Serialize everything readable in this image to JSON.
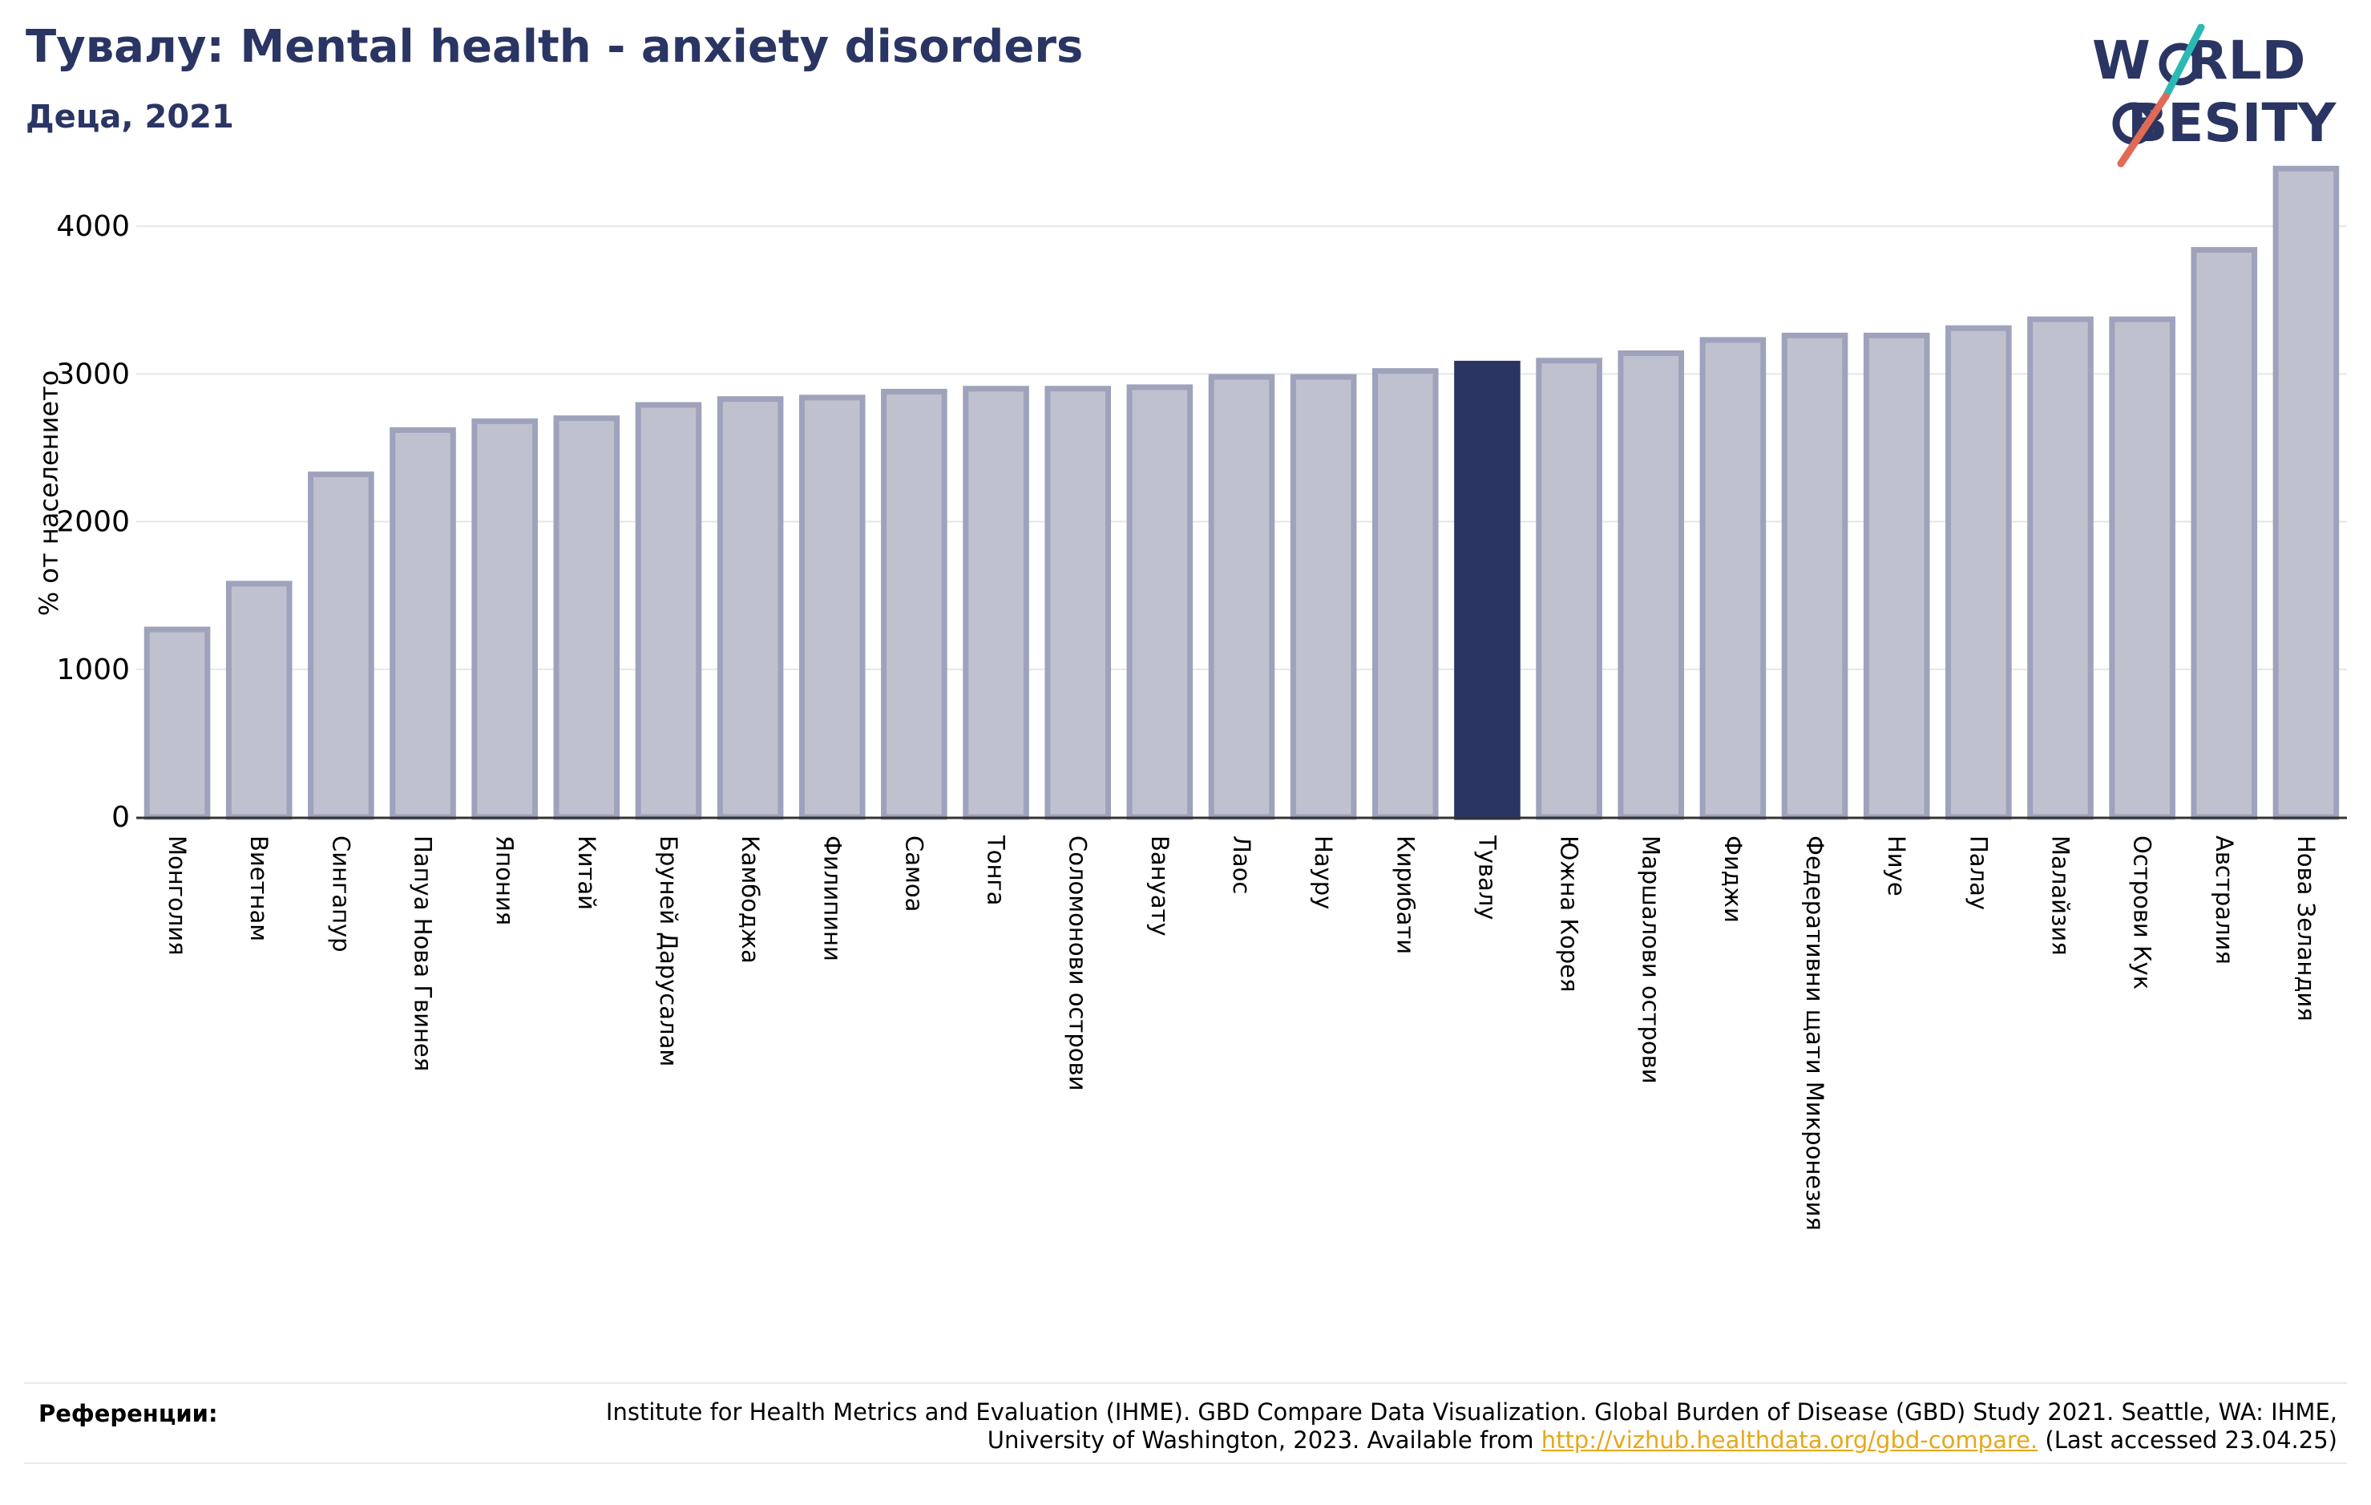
{
  "header": {
    "title": "Тувалу: Mental health - anxiety disorders",
    "subtitle": "Деца, 2021"
  },
  "logo": {
    "line1": "W  RLD",
    "line2": "BESITY",
    "colors": {
      "text": "#2a3563",
      "slash_top": "#2bb9b4",
      "slash_bottom": "#e06a55"
    }
  },
  "colors": {
    "highlight": "#2a3563",
    "bar_fill": "#bfc1cf",
    "bar_edge": "#9ea2bb",
    "grid": "#e6e6ea",
    "axis": "#333333"
  },
  "chart_data": {
    "type": "bar",
    "title": "Тувалу: Mental health - anxiety disorders",
    "subtitle": "Деца, 2021",
    "ylabel": "% от населението",
    "xlabel": "",
    "ylim": [
      0,
      4500
    ],
    "yticks": [
      0,
      1000,
      2000,
      3000,
      4000
    ],
    "grid": true,
    "highlight_category": "Тувалу",
    "categories": [
      "Монголия",
      "Виетнам",
      "Сингапур",
      "Папуа Нова Гвинея",
      "Япония",
      "Китай",
      "Бруней Дарусалам",
      "Камбоджа",
      "Филипини",
      "Самоа",
      "Тонга",
      "Соломонови острови",
      "Вануату",
      "Лаос",
      "Науру",
      "Кирибати",
      "Тувалу",
      "Южна Корея",
      "Маршалови острови",
      "Фиджи",
      "Федеративни щати Микронезия",
      "Ниуе",
      "Палау",
      "Малайзия",
      "Острови Кук",
      "Австралия",
      "Нова Зеландия"
    ],
    "values": [
      1270,
      1580,
      2320,
      2620,
      2680,
      2700,
      2790,
      2830,
      2840,
      2880,
      2900,
      2900,
      2910,
      2980,
      2980,
      3020,
      3070,
      3090,
      3140,
      3230,
      3260,
      3260,
      3310,
      3370,
      3370,
      3840,
      4390
    ]
  },
  "references": {
    "label": "Референции:",
    "text_before": "Institute for Health Metrics and Evaluation (IHME). GBD Compare Data Visualization. Global Burden of Disease (GBD) Study 2021. Seattle, WA: IHME, University of Washington, 2023. Available from ",
    "link": "http://vizhub.healthdata.org/gbd-compare.",
    "text_after": " (Last accessed 23.04.25)"
  }
}
